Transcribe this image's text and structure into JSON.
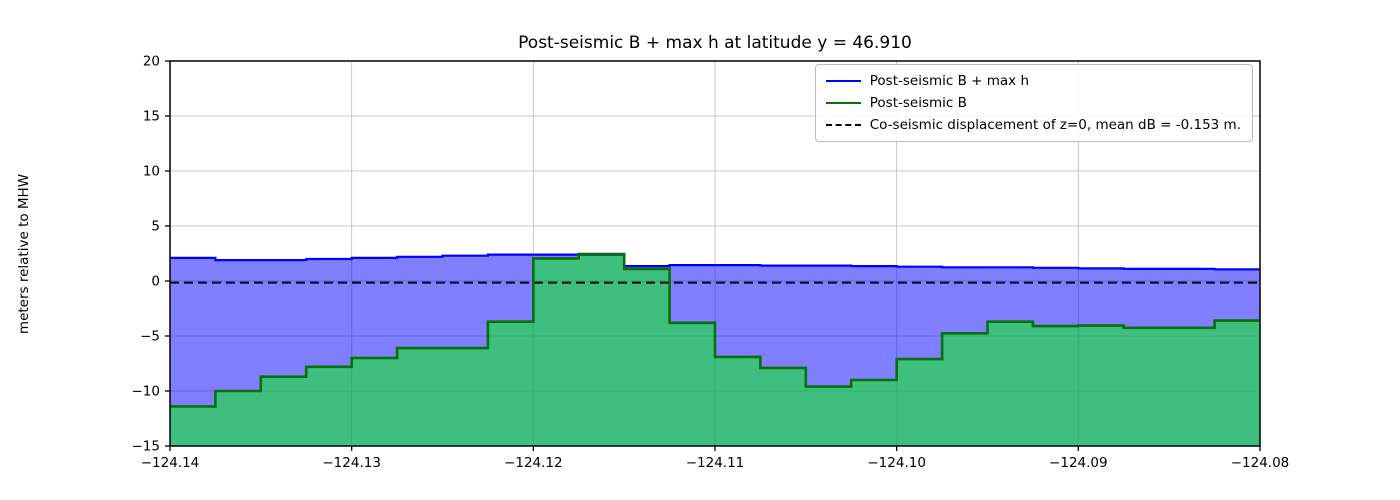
{
  "title": "Post-seismic B + max h at latitude y = 46.910",
  "y_axis_label": "meters relative to MHW",
  "colors": {
    "blue_line": "#0000ff",
    "blue_fill": "rgba(0,0,255,0.5)",
    "green_line": "#077007",
    "green_fill": "rgba(0,255,0,0.5)",
    "dashed_line": "#000000",
    "grid": "#c8c8c8",
    "spine": "#000000"
  },
  "chart_data": {
    "type": "area",
    "subtype": "step-post",
    "grid": true,
    "legend_position": "upper right",
    "xlim": [
      -124.14,
      -124.08
    ],
    "ylim": [
      -15,
      20
    ],
    "x_step": 0.0025,
    "x_ticks": [
      -124.14,
      -124.13,
      -124.12,
      -124.11,
      -124.1,
      -124.09,
      -124.08
    ],
    "x_tick_labels": [
      "−124.14",
      "−124.13",
      "−124.12",
      "−124.11",
      "−124.10",
      "−124.09",
      "−124.08"
    ],
    "y_ticks": [
      20,
      15,
      10,
      5,
      0,
      -5,
      -10,
      -15
    ],
    "y_tick_labels": [
      "20",
      "15",
      "10",
      "5",
      "0",
      "−5",
      "−10",
      "−15"
    ],
    "series": [
      {
        "name": "Post-seismic B + max h",
        "values": [
          2.1,
          1.9,
          1.9,
          2.0,
          2.1,
          2.2,
          2.3,
          2.4,
          2.4,
          2.4,
          1.35,
          1.45,
          1.45,
          1.4,
          1.4,
          1.35,
          1.3,
          1.25,
          1.25,
          1.2,
          1.15,
          1.1,
          1.1,
          1.05
        ]
      },
      {
        "name": "Post-seismic B",
        "values": [
          -11.4,
          -10.0,
          -8.7,
          -7.8,
          -7.0,
          -6.1,
          -6.1,
          -3.7,
          2.05,
          2.45,
          1.1,
          -3.8,
          -6.9,
          -7.9,
          -9.6,
          -9.0,
          -7.1,
          -4.75,
          -3.7,
          -4.1,
          -4.05,
          -4.25,
          -4.25,
          -3.6
        ]
      }
    ],
    "hline": {
      "label": "Co-seismic displacement of z=0, mean dB = -0.153 m.",
      "value": -0.153,
      "style": "dashed"
    }
  }
}
